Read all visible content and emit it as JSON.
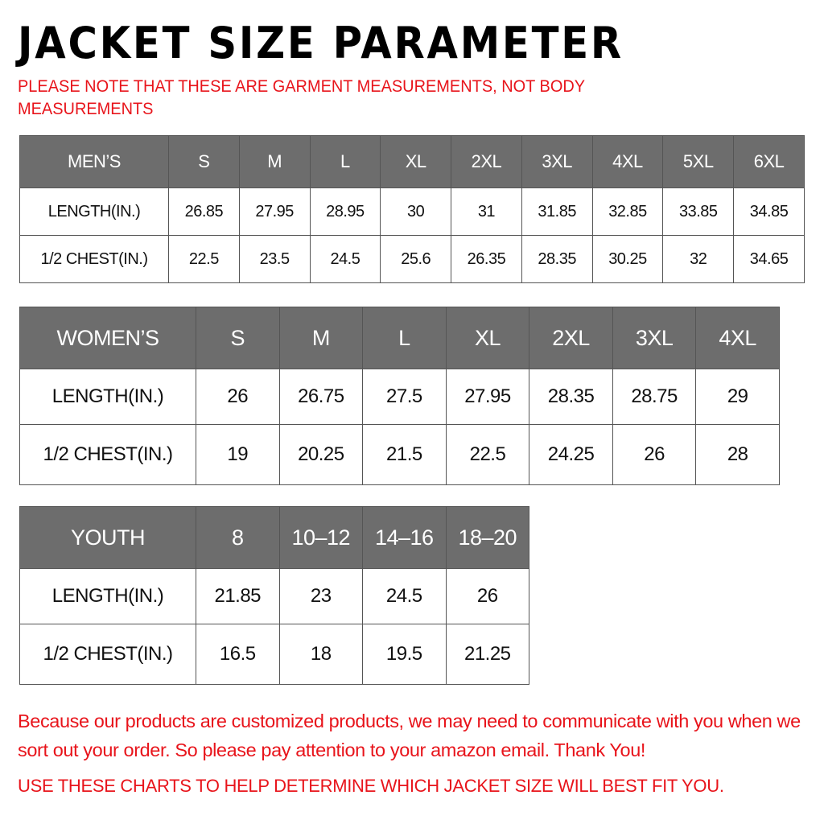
{
  "title": "JACKET SIZE PARAMETER",
  "note": "PLEASE NOTE THAT THESE ARE GARMENT MEASUREMENTS, NOT BODY MEASUREMENTS",
  "colors": {
    "header_bg": "#6d6d6d",
    "accent_red": "#e8141b"
  },
  "tables": {
    "men": {
      "header": [
        "MEN’S",
        "S",
        "M",
        "L",
        "XL",
        "2XL",
        "3XL",
        "4XL",
        "5XL",
        "6XL"
      ],
      "rows": [
        [
          "LENGTH(IN.)",
          "26.85",
          "27.95",
          "28.95",
          "30",
          "31",
          "31.85",
          "32.85",
          "33.85",
          "34.85"
        ],
        [
          "1/2 CHEST(IN.)",
          "22.5",
          "23.5",
          "24.5",
          "25.6",
          "26.35",
          "28.35",
          "30.25",
          "32",
          "34.65"
        ]
      ]
    },
    "women": {
      "header": [
        "WOMEN’S",
        "S",
        "M",
        "L",
        "XL",
        "2XL",
        "3XL",
        "4XL"
      ],
      "rows": [
        [
          "LENGTH(IN.)",
          "26",
          "26.75",
          "27.5",
          "27.95",
          "28.35",
          "28.75",
          "29"
        ],
        [
          "1/2 CHEST(IN.)",
          "19",
          "20.25",
          "21.5",
          "22.5",
          "24.25",
          "26",
          "28"
        ]
      ]
    },
    "youth": {
      "header": [
        "YOUTH",
        "8",
        "10–12",
        "14–16",
        "18–20"
      ],
      "rows": [
        [
          "LENGTH(IN.)",
          "21.85",
          "23",
          "24.5",
          "26"
        ],
        [
          "1/2 CHEST(IN.)",
          "16.5",
          "18",
          "19.5",
          "21.25"
        ]
      ]
    }
  },
  "message": "Because our products are customized products, we may need to communicate with you when we sort out your order. So please pay attention to your amazon email. Thank You!",
  "footer": "USE THESE CHARTS TO HELP DETERMINE WHICH JACKET SIZE WILL BEST FIT YOU."
}
